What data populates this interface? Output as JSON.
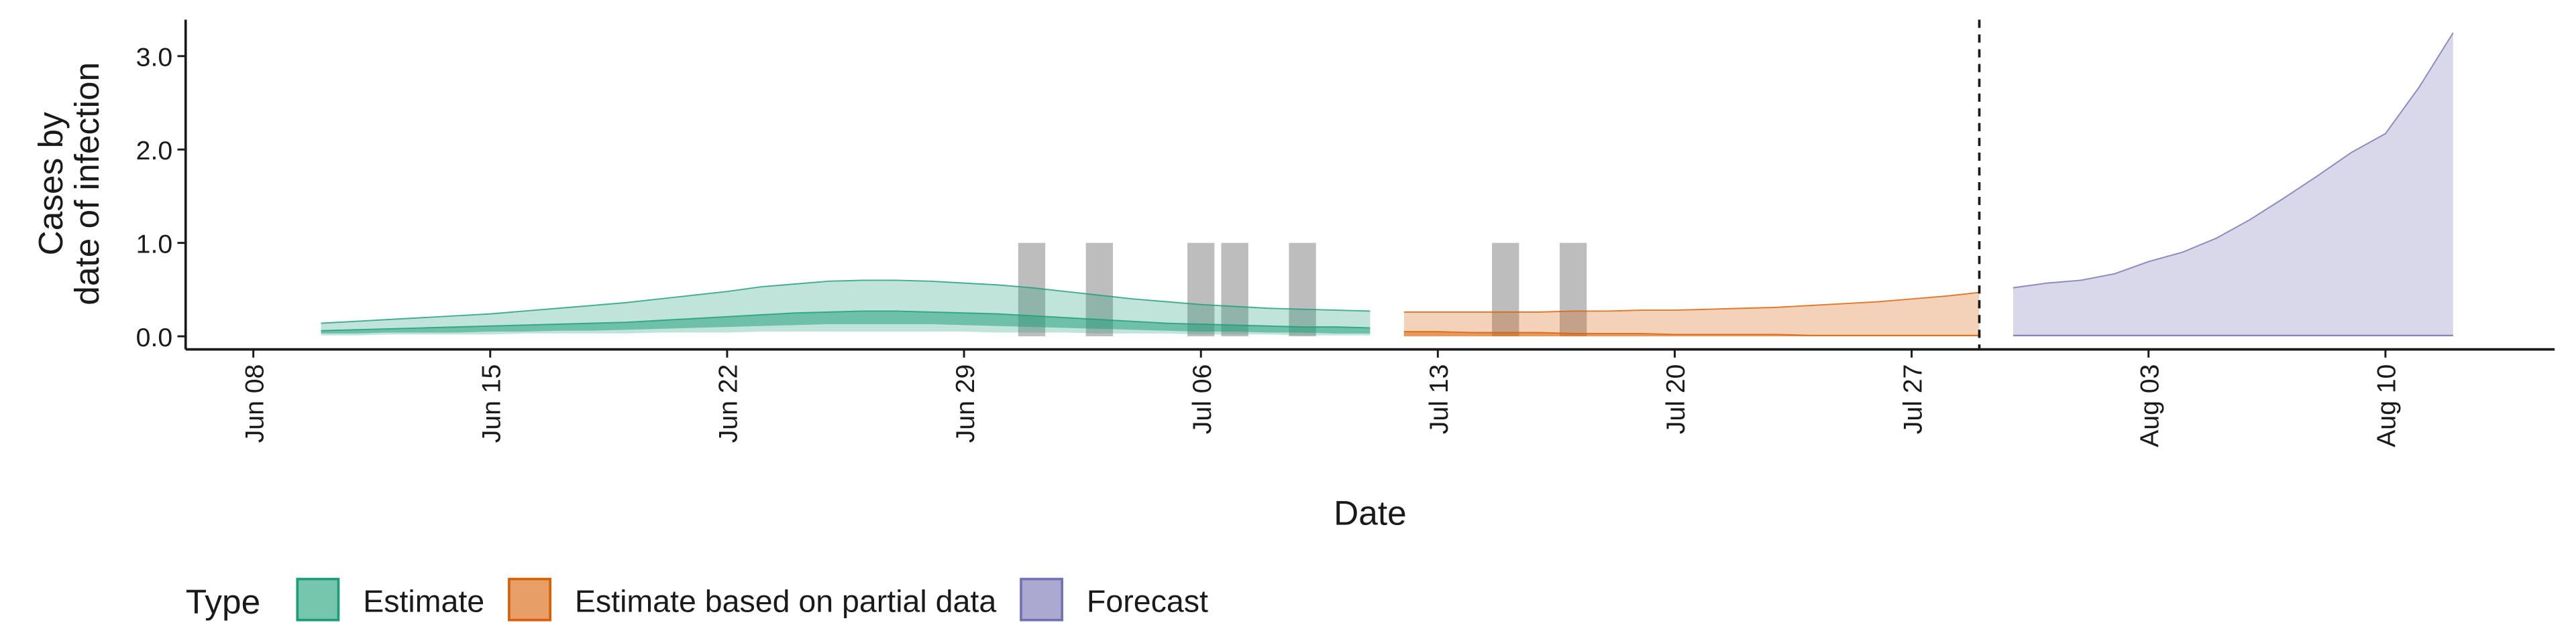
{
  "chart_data": {
    "type": "ribbon",
    "ylabel": [
      "Cases by",
      "date of infection"
    ],
    "xlabel": "Date",
    "legend_title": "Type",
    "legend_position": "bottom-left",
    "ylim": [
      -0.14,
      3.39
    ],
    "yticks": [
      {
        "value": 0,
        "label": "0.0"
      },
      {
        "value": 1,
        "label": "1.0"
      },
      {
        "value": 2,
        "label": "2.0"
      },
      {
        "value": 3,
        "label": "3.0"
      }
    ],
    "xlim": [
      "06-06",
      "08-15"
    ],
    "xticks": [
      {
        "value": "06-08",
        "label": "Jun 08"
      },
      {
        "value": "06-15",
        "label": "Jun 15"
      },
      {
        "value": "06-22",
        "label": "Jun 22"
      },
      {
        "value": "06-29",
        "label": "Jun 29"
      },
      {
        "value": "07-06",
        "label": "Jul 06"
      },
      {
        "value": "07-13",
        "label": "Jul 13"
      },
      {
        "value": "07-20",
        "label": "Jul 20"
      },
      {
        "value": "07-27",
        "label": "Jul 27"
      },
      {
        "value": "08-03",
        "label": "Aug 03"
      },
      {
        "value": "08-10",
        "label": "Aug 10"
      }
    ],
    "vline": "07-29",
    "observed": {
      "color": "#bdbdbd",
      "x": [
        "07-01",
        "07-03",
        "07-06",
        "07-07",
        "07-09",
        "07-15",
        "07-17"
      ],
      "values": [
        1,
        1,
        1,
        1,
        1,
        1,
        1
      ]
    },
    "series": [
      {
        "name": "Estimate",
        "color": "#1b9e77",
        "x": [
          "06-10",
          "06-11",
          "06-12",
          "06-13",
          "06-14",
          "06-15",
          "06-16",
          "06-17",
          "06-18",
          "06-19",
          "06-20",
          "06-21",
          "06-22",
          "06-23",
          "06-24",
          "06-25",
          "06-26",
          "06-27",
          "06-28",
          "06-29",
          "06-30",
          "07-01",
          "07-02",
          "07-03",
          "07-04",
          "07-05",
          "07-06",
          "07-07",
          "07-08",
          "07-09",
          "07-10",
          "07-11"
        ],
        "upper": [
          0.14,
          0.16,
          0.18,
          0.2,
          0.22,
          0.24,
          0.27,
          0.3,
          0.33,
          0.36,
          0.4,
          0.44,
          0.48,
          0.53,
          0.56,
          0.59,
          0.6,
          0.6,
          0.59,
          0.57,
          0.55,
          0.52,
          0.48,
          0.44,
          0.4,
          0.37,
          0.34,
          0.32,
          0.3,
          0.29,
          0.28,
          0.27
        ],
        "lower": [
          0.01,
          0.01,
          0.02,
          0.02,
          0.02,
          0.02,
          0.03,
          0.03,
          0.03,
          0.03,
          0.04,
          0.04,
          0.04,
          0.05,
          0.05,
          0.05,
          0.05,
          0.05,
          0.05,
          0.05,
          0.04,
          0.04,
          0.04,
          0.03,
          0.03,
          0.03,
          0.02,
          0.02,
          0.02,
          0.01,
          0.01,
          0.01
        ],
        "inner_upper": [
          0.06,
          0.07,
          0.08,
          0.09,
          0.1,
          0.11,
          0.12,
          0.13,
          0.14,
          0.15,
          0.17,
          0.19,
          0.21,
          0.23,
          0.25,
          0.26,
          0.27,
          0.27,
          0.26,
          0.25,
          0.24,
          0.22,
          0.2,
          0.18,
          0.16,
          0.14,
          0.13,
          0.12,
          0.11,
          0.1,
          0.1,
          0.09
        ],
        "inner_lower": [
          0.03,
          0.03,
          0.04,
          0.04,
          0.04,
          0.05,
          0.05,
          0.06,
          0.06,
          0.07,
          0.08,
          0.09,
          0.1,
          0.11,
          0.12,
          0.13,
          0.13,
          0.13,
          0.13,
          0.12,
          0.11,
          0.1,
          0.09,
          0.08,
          0.07,
          0.06,
          0.05,
          0.05,
          0.04,
          0.04,
          0.03,
          0.03
        ]
      },
      {
        "name": "Estimate based on partial data",
        "color": "#d95f02",
        "x": [
          "07-12",
          "07-13",
          "07-14",
          "07-15",
          "07-16",
          "07-17",
          "07-18",
          "07-19",
          "07-20",
          "07-21",
          "07-22",
          "07-23",
          "07-24",
          "07-25",
          "07-26",
          "07-27",
          "07-28",
          "07-29"
        ],
        "upper": [
          0.26,
          0.26,
          0.26,
          0.26,
          0.26,
          0.27,
          0.27,
          0.28,
          0.28,
          0.29,
          0.3,
          0.31,
          0.33,
          0.35,
          0.37,
          0.4,
          0.43,
          0.47
        ],
        "lower": [
          0,
          0,
          0,
          0,
          0,
          0,
          0,
          0,
          0,
          0,
          0,
          0,
          0,
          0,
          0,
          0,
          0,
          0
        ],
        "inner_upper": [
          0.05,
          0.05,
          0.04,
          0.04,
          0.04,
          0.03,
          0.03,
          0.03,
          0.02,
          0.02,
          0.02,
          0.02,
          0.01,
          0.01,
          0.01,
          0.01,
          0.01,
          0.01
        ],
        "inner_lower": [
          0,
          0,
          0,
          0,
          0,
          0,
          0,
          0,
          0,
          0,
          0,
          0,
          0,
          0,
          0,
          0,
          0,
          0
        ]
      },
      {
        "name": "Forecast",
        "color": "#7570b3",
        "x": [
          "07-30",
          "07-31",
          "08-01",
          "08-02",
          "08-03",
          "08-04",
          "08-05",
          "08-06",
          "08-07",
          "08-08",
          "08-09",
          "08-10",
          "08-11",
          "08-12"
        ],
        "upper": [
          0.52,
          0.57,
          0.6,
          0.67,
          0.8,
          0.9,
          1.05,
          1.25,
          1.48,
          1.72,
          1.97,
          2.17,
          2.67,
          3.25
        ],
        "lower": [
          0,
          0,
          0,
          0,
          0,
          0,
          0,
          0,
          0,
          0,
          0,
          0,
          0,
          0
        ],
        "inner_upper": [
          0.01,
          0.01,
          0.01,
          0.01,
          0.01,
          0.01,
          0.01,
          0.01,
          0.01,
          0.01,
          0.01,
          0.01,
          0.01,
          0.01
        ],
        "inner_lower": [
          0,
          0,
          0,
          0,
          0,
          0,
          0,
          0,
          0,
          0,
          0,
          0,
          0,
          0
        ]
      }
    ]
  }
}
